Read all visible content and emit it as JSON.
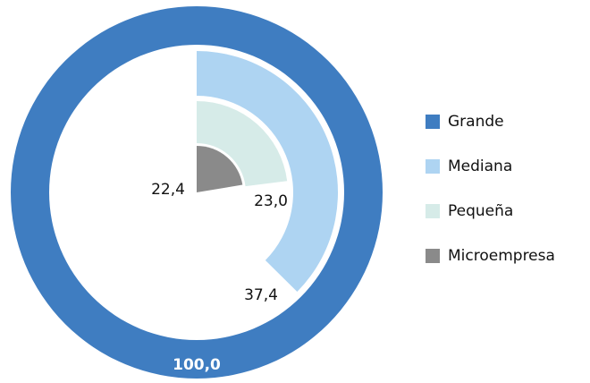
{
  "chart_data": {
    "type": "radial_bar",
    "categories": [
      "Grande",
      "Mediana",
      "Pequeña",
      "Microempresa"
    ],
    "values": [
      100.0,
      37.4,
      23.0,
      22.4
    ],
    "value_labels": [
      "100,0",
      "37,4",
      "23,0",
      "22,4"
    ],
    "colors": [
      "#3f7dc1",
      "#aed4f2",
      "#d6ebe8",
      "#8a8a8a"
    ],
    "legend": "right"
  }
}
